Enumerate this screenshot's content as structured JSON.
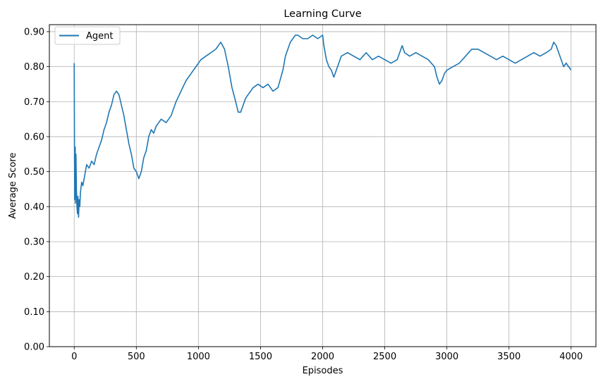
{
  "chart_data": {
    "type": "line",
    "title": "Learning Curve",
    "xlabel": "Episodes",
    "ylabel": "Average Score",
    "xlim": [
      -200,
      4200
    ],
    "ylim": [
      0,
      0.92
    ],
    "xticks": [
      0,
      500,
      1000,
      1500,
      2000,
      2500,
      3000,
      3500,
      4000
    ],
    "xtick_labels": [
      "0",
      "500",
      "1000",
      "1500",
      "2000",
      "2500",
      "3000",
      "3500",
      "4000"
    ],
    "yticks": [
      0,
      0.1,
      0.2,
      0.3,
      0.4,
      0.5,
      0.6,
      0.7,
      0.8,
      0.9
    ],
    "ytick_labels": [
      "0.00",
      "0.10",
      "0.20",
      "0.30",
      "0.40",
      "0.50",
      "0.60",
      "0.70",
      "0.80",
      "0.90"
    ],
    "grid": true,
    "legend_position": "top-left",
    "series": [
      {
        "name": "Agent",
        "color": "#1f77b4",
        "x": [
          0,
          2,
          4,
          6,
          8,
          10,
          14,
          18,
          22,
          26,
          30,
          35,
          40,
          45,
          50,
          60,
          70,
          80,
          90,
          100,
          120,
          140,
          160,
          180,
          200,
          220,
          240,
          260,
          280,
          300,
          320,
          340,
          360,
          380,
          400,
          420,
          440,
          460,
          480,
          500,
          520,
          540,
          560,
          580,
          600,
          620,
          640,
          660,
          680,
          700,
          740,
          780,
          820,
          860,
          900,
          940,
          980,
          1020,
          1060,
          1100,
          1140,
          1180,
          1210,
          1240,
          1270,
          1300,
          1320,
          1340,
          1360,
          1380,
          1400,
          1440,
          1480,
          1520,
          1560,
          1600,
          1640,
          1680,
          1700,
          1720,
          1740,
          1760,
          1780,
          1800,
          1840,
          1880,
          1920,
          1960,
          2000,
          2010,
          2030,
          2050,
          2070,
          2090,
          2110,
          2150,
          2200,
          2250,
          2300,
          2350,
          2400,
          2450,
          2500,
          2550,
          2600,
          2620,
          2640,
          2660,
          2700,
          2750,
          2800,
          2850,
          2900,
          2920,
          2940,
          2960,
          2980,
          3000,
          3050,
          3100,
          3150,
          3200,
          3250,
          3300,
          3350,
          3400,
          3450,
          3500,
          3550,
          3600,
          3650,
          3700,
          3750,
          3800,
          3840,
          3860,
          3880,
          3900,
          3920,
          3940,
          3960,
          3980,
          4000
        ],
        "y": [
          0.81,
          0.6,
          0.42,
          0.52,
          0.57,
          0.41,
          0.55,
          0.45,
          0.4,
          0.38,
          0.43,
          0.37,
          0.42,
          0.4,
          0.44,
          0.47,
          0.46,
          0.48,
          0.5,
          0.52,
          0.51,
          0.53,
          0.52,
          0.55,
          0.57,
          0.59,
          0.62,
          0.64,
          0.67,
          0.69,
          0.72,
          0.73,
          0.72,
          0.69,
          0.66,
          0.62,
          0.58,
          0.55,
          0.51,
          0.5,
          0.48,
          0.5,
          0.54,
          0.56,
          0.6,
          0.62,
          0.61,
          0.63,
          0.64,
          0.65,
          0.64,
          0.66,
          0.7,
          0.73,
          0.76,
          0.78,
          0.8,
          0.82,
          0.83,
          0.84,
          0.85,
          0.87,
          0.85,
          0.8,
          0.74,
          0.7,
          0.67,
          0.67,
          0.69,
          0.71,
          0.72,
          0.74,
          0.75,
          0.74,
          0.75,
          0.73,
          0.74,
          0.79,
          0.83,
          0.85,
          0.87,
          0.88,
          0.89,
          0.89,
          0.88,
          0.88,
          0.89,
          0.88,
          0.89,
          0.86,
          0.82,
          0.8,
          0.79,
          0.77,
          0.79,
          0.83,
          0.84,
          0.83,
          0.82,
          0.84,
          0.82,
          0.83,
          0.82,
          0.81,
          0.82,
          0.84,
          0.86,
          0.84,
          0.83,
          0.84,
          0.83,
          0.82,
          0.8,
          0.77,
          0.75,
          0.76,
          0.78,
          0.79,
          0.8,
          0.81,
          0.83,
          0.85,
          0.85,
          0.84,
          0.83,
          0.82,
          0.83,
          0.82,
          0.81,
          0.82,
          0.83,
          0.84,
          0.83,
          0.84,
          0.85,
          0.87,
          0.86,
          0.84,
          0.82,
          0.8,
          0.81,
          0.8,
          0.79
        ]
      }
    ]
  }
}
